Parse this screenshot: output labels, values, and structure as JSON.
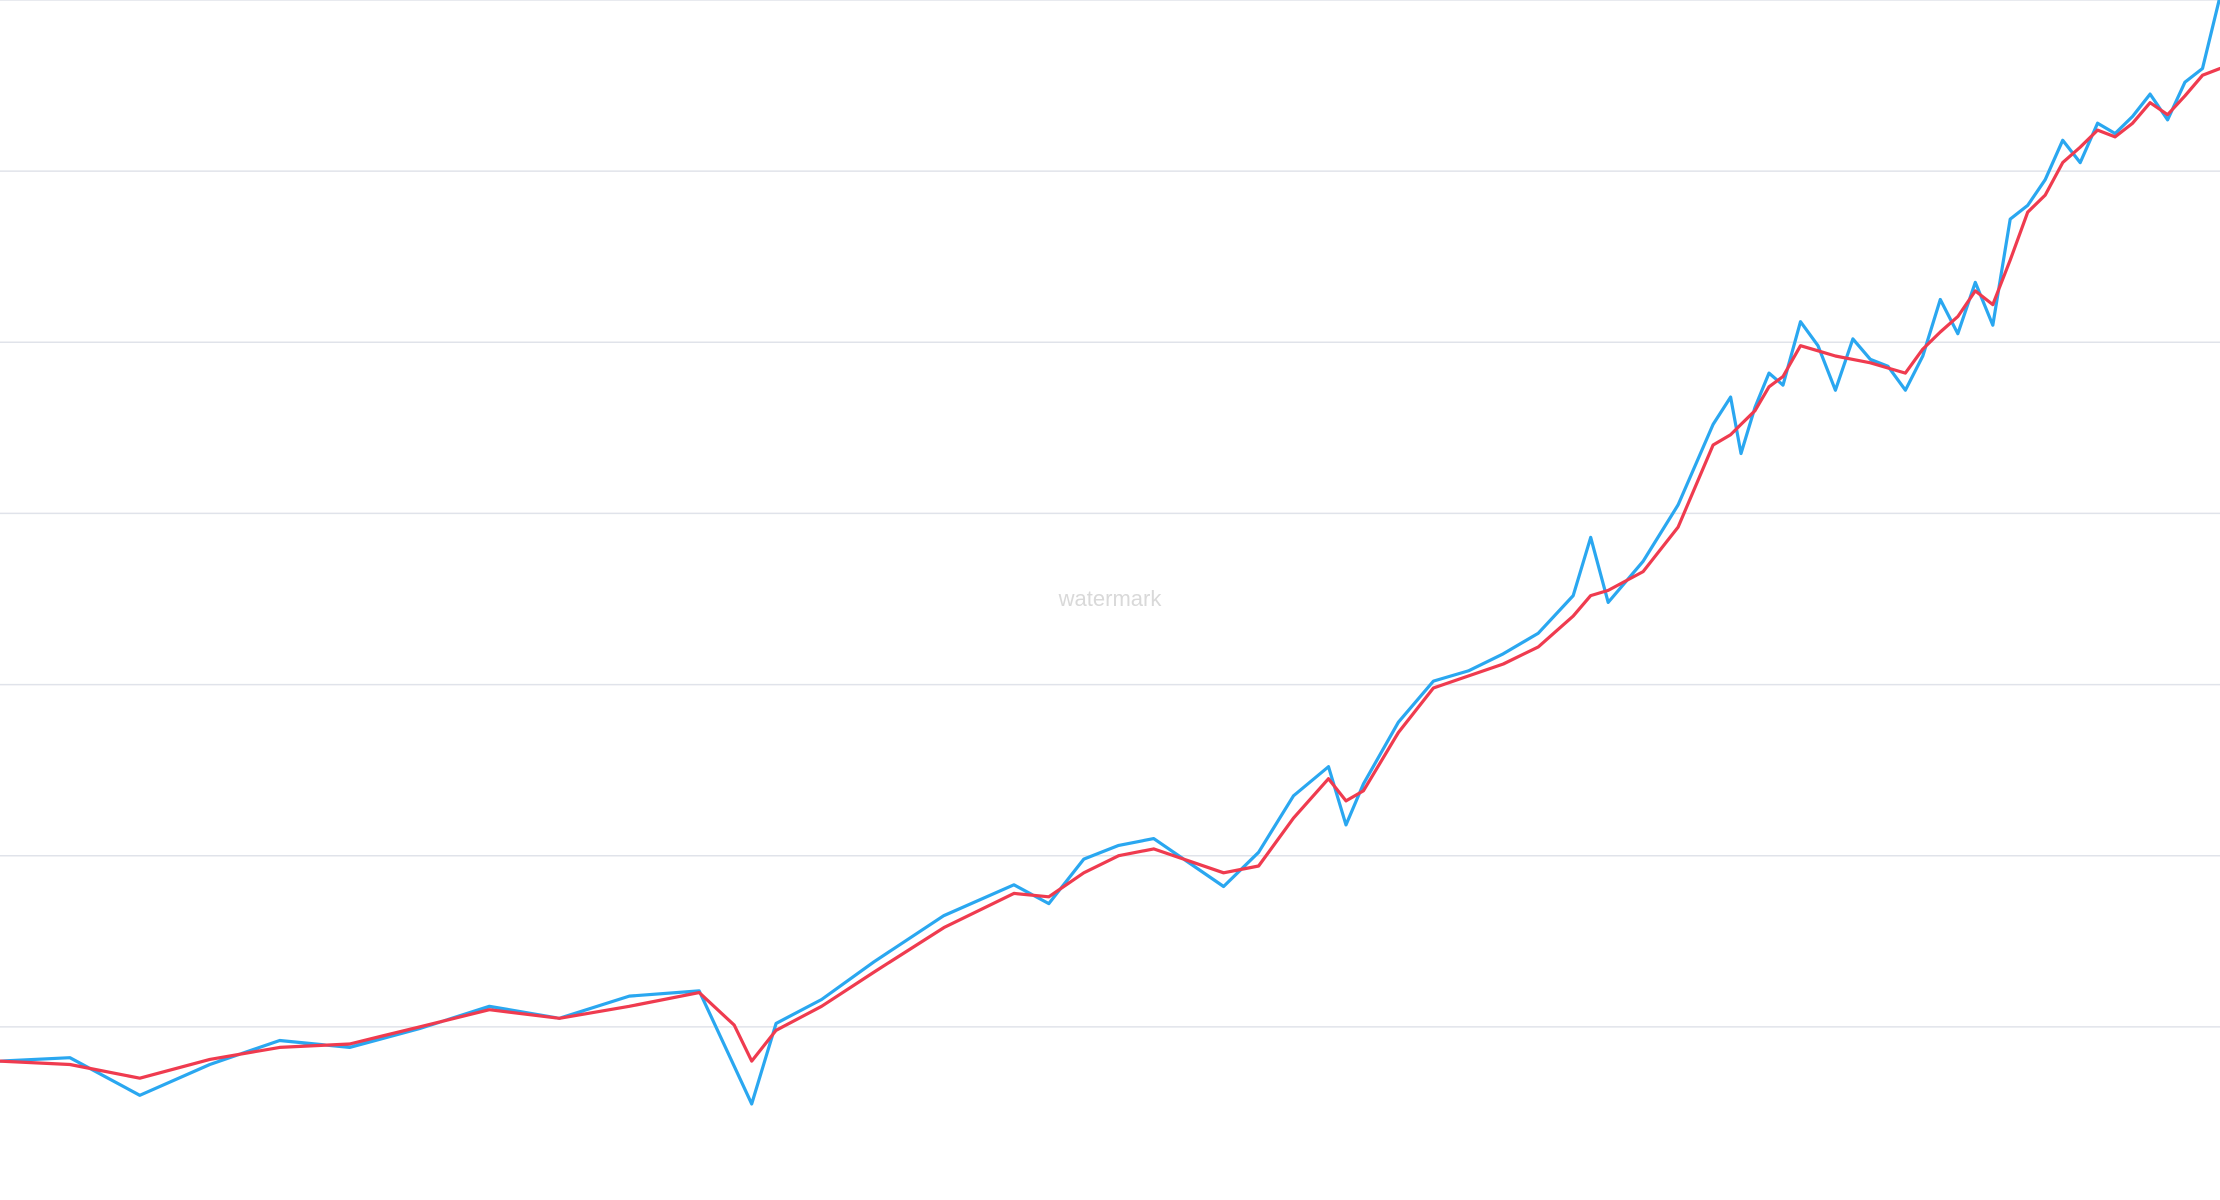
{
  "watermark": "watermark",
  "colors": {
    "background": "#ffffff",
    "grid": "#e0e3ea",
    "watermark": "#d9d9d9"
  },
  "chart_data": {
    "type": "line",
    "title": "",
    "xlabel": "",
    "ylabel": "",
    "ylim": [
      0,
      7
    ],
    "grid": true,
    "legend": "none",
    "gridlines": [
      1,
      2,
      3,
      4,
      5,
      6,
      7
    ],
    "series": [
      {
        "color": "#2aa7f0",
        "points": [
          [
            0,
            0.8
          ],
          [
            20,
            0.82
          ],
          [
            40,
            0.6
          ],
          [
            60,
            0.78
          ],
          [
            80,
            0.92
          ],
          [
            100,
            0.88
          ],
          [
            120,
            0.99
          ],
          [
            140,
            1.12
          ],
          [
            160,
            1.05
          ],
          [
            180,
            1.18
          ],
          [
            200,
            1.21
          ],
          [
            210,
            0.77
          ],
          [
            215,
            0.55
          ],
          [
            222,
            1.02
          ],
          [
            235,
            1.16
          ],
          [
            250,
            1.38
          ],
          [
            270,
            1.65
          ],
          [
            290,
            1.83
          ],
          [
            300,
            1.72
          ],
          [
            310,
            1.98
          ],
          [
            320,
            2.06
          ],
          [
            330,
            2.1
          ],
          [
            350,
            1.82
          ],
          [
            360,
            2.02
          ],
          [
            370,
            2.35
          ],
          [
            380,
            2.52
          ],
          [
            385,
            2.18
          ],
          [
            390,
            2.42
          ],
          [
            400,
            2.78
          ],
          [
            410,
            3.02
          ],
          [
            420,
            3.08
          ],
          [
            430,
            3.18
          ],
          [
            440,
            3.3
          ],
          [
            450,
            3.52
          ],
          [
            455,
            3.86
          ],
          [
            460,
            3.48
          ],
          [
            470,
            3.72
          ],
          [
            480,
            4.05
          ],
          [
            490,
            4.52
          ],
          [
            495,
            4.68
          ],
          [
            498,
            4.35
          ],
          [
            502,
            4.62
          ],
          [
            506,
            4.82
          ],
          [
            510,
            4.75
          ],
          [
            515,
            5.12
          ],
          [
            520,
            4.98
          ],
          [
            525,
            4.72
          ],
          [
            530,
            5.02
          ],
          [
            535,
            4.9
          ],
          [
            540,
            4.86
          ],
          [
            545,
            4.72
          ],
          [
            550,
            4.92
          ],
          [
            555,
            5.25
          ],
          [
            560,
            5.05
          ],
          [
            565,
            5.35
          ],
          [
            570,
            5.1
          ],
          [
            575,
            5.72
          ],
          [
            580,
            5.8
          ],
          [
            585,
            5.95
          ],
          [
            590,
            6.18
          ],
          [
            595,
            6.05
          ],
          [
            600,
            6.28
          ],
          [
            605,
            6.22
          ],
          [
            610,
            6.32
          ],
          [
            615,
            6.45
          ],
          [
            620,
            6.3
          ],
          [
            625,
            6.52
          ],
          [
            630,
            6.6
          ],
          [
            635,
            7.02
          ]
        ]
      },
      {
        "color": "#ef3b4f",
        "points": [
          [
            0,
            0.8
          ],
          [
            20,
            0.78
          ],
          [
            40,
            0.7
          ],
          [
            60,
            0.81
          ],
          [
            80,
            0.88
          ],
          [
            100,
            0.9
          ],
          [
            120,
            1.0
          ],
          [
            140,
            1.1
          ],
          [
            160,
            1.05
          ],
          [
            180,
            1.12
          ],
          [
            200,
            1.2
          ],
          [
            210,
            1.01
          ],
          [
            215,
            0.8
          ],
          [
            222,
            0.98
          ],
          [
            235,
            1.12
          ],
          [
            250,
            1.32
          ],
          [
            270,
            1.58
          ],
          [
            290,
            1.78
          ],
          [
            300,
            1.76
          ],
          [
            310,
            1.9
          ],
          [
            320,
            2.0
          ],
          [
            330,
            2.04
          ],
          [
            350,
            1.9
          ],
          [
            360,
            1.94
          ],
          [
            370,
            2.22
          ],
          [
            380,
            2.45
          ],
          [
            385,
            2.32
          ],
          [
            390,
            2.38
          ],
          [
            400,
            2.72
          ],
          [
            410,
            2.98
          ],
          [
            420,
            3.05
          ],
          [
            430,
            3.12
          ],
          [
            440,
            3.22
          ],
          [
            450,
            3.4
          ],
          [
            455,
            3.52
          ],
          [
            460,
            3.55
          ],
          [
            470,
            3.66
          ],
          [
            480,
            3.92
          ],
          [
            490,
            4.4
          ],
          [
            495,
            4.46
          ],
          [
            498,
            4.52
          ],
          [
            502,
            4.6
          ],
          [
            506,
            4.74
          ],
          [
            510,
            4.8
          ],
          [
            515,
            4.98
          ],
          [
            520,
            4.95
          ],
          [
            525,
            4.92
          ],
          [
            530,
            4.9
          ],
          [
            535,
            4.88
          ],
          [
            540,
            4.85
          ],
          [
            545,
            4.82
          ],
          [
            550,
            4.96
          ],
          [
            555,
            5.06
          ],
          [
            560,
            5.15
          ],
          [
            565,
            5.3
          ],
          [
            570,
            5.22
          ],
          [
            575,
            5.48
          ],
          [
            580,
            5.76
          ],
          [
            585,
            5.86
          ],
          [
            590,
            6.05
          ],
          [
            595,
            6.14
          ],
          [
            600,
            6.24
          ],
          [
            605,
            6.2
          ],
          [
            610,
            6.28
          ],
          [
            615,
            6.4
          ],
          [
            620,
            6.33
          ],
          [
            625,
            6.44
          ],
          [
            630,
            6.56
          ],
          [
            635,
            6.6
          ]
        ]
      }
    ]
  }
}
